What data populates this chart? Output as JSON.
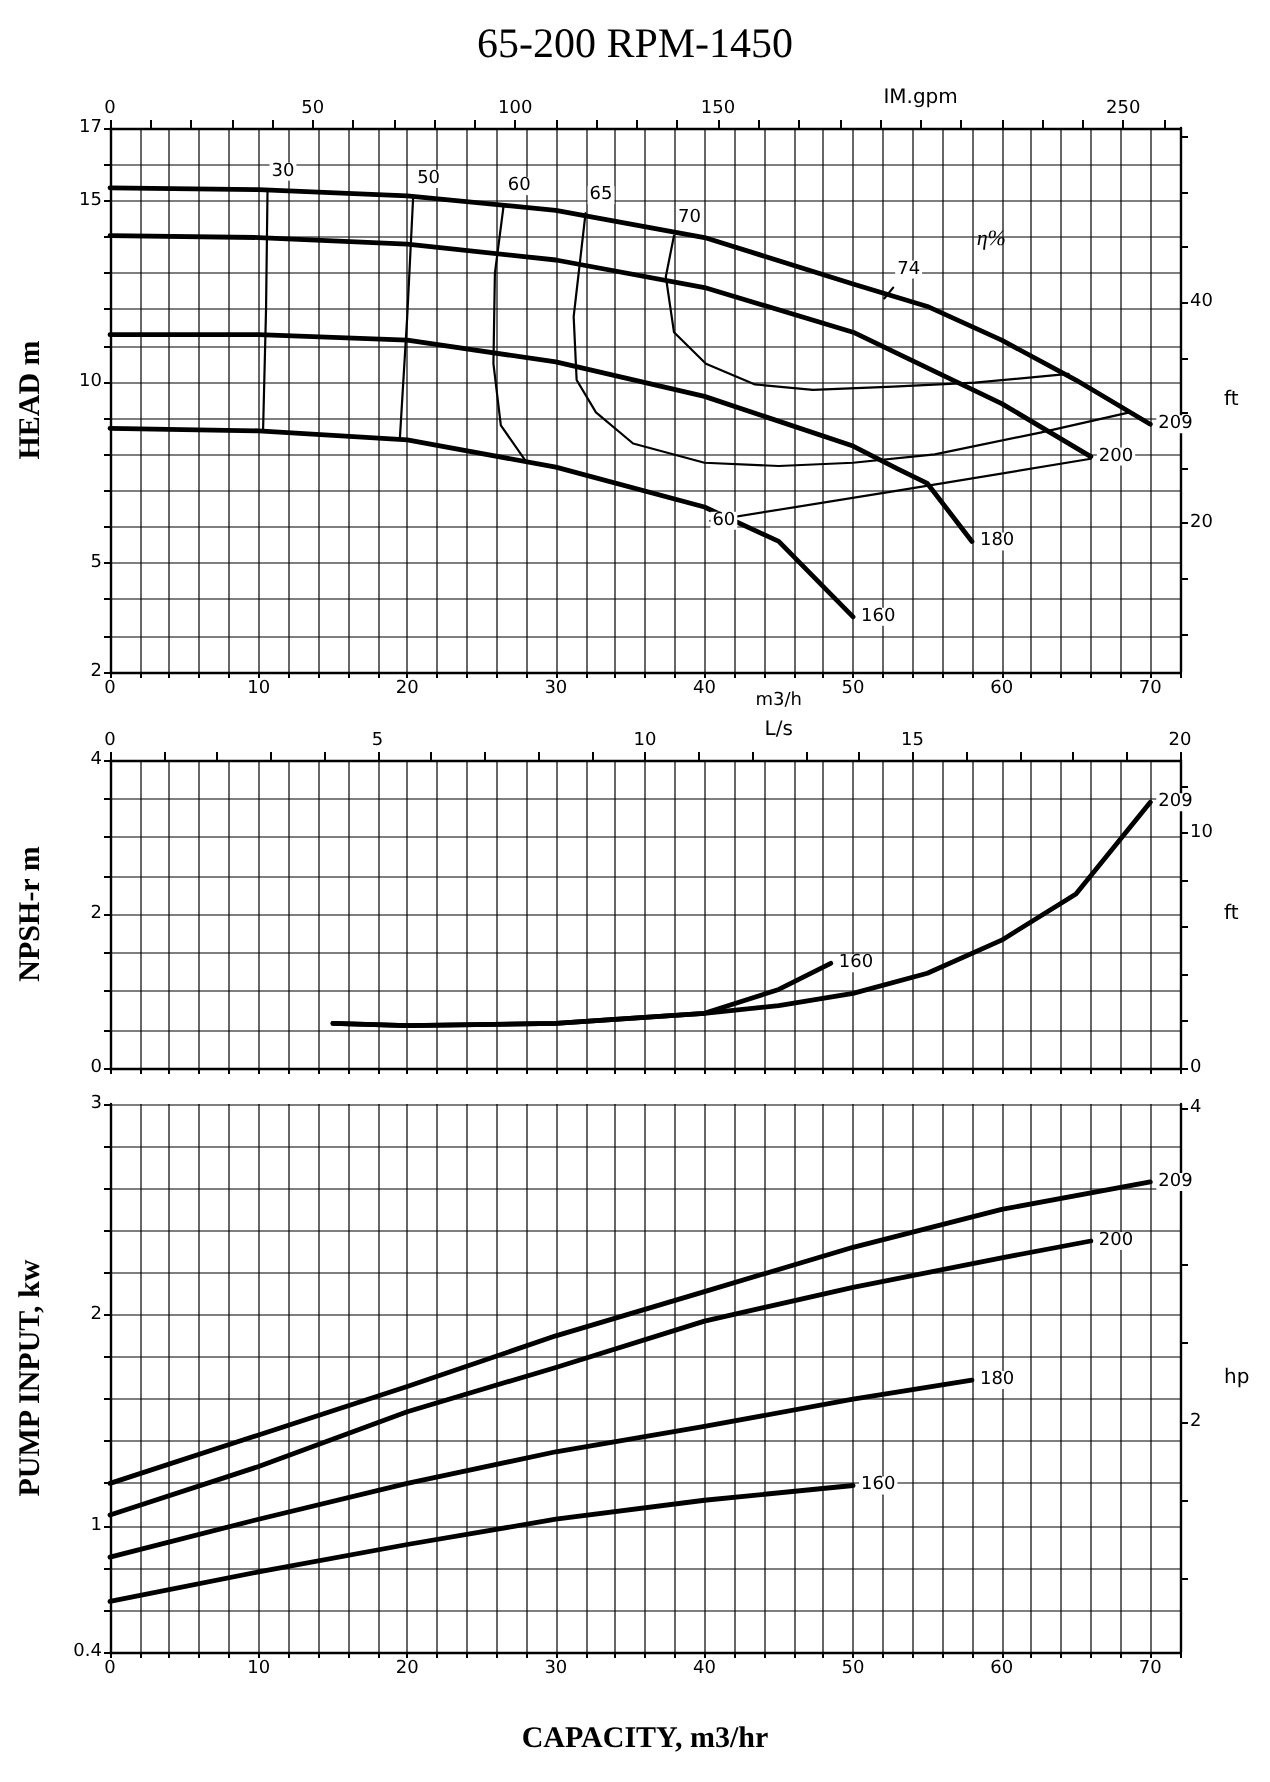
{
  "chart_data": [
    {
      "type": "line",
      "title": "65-200 RPM-1450",
      "ylabel": "HEAD m",
      "xlabel": "m3/h",
      "x2label": "IM.gpm",
      "y2label": "ft",
      "grid": true,
      "legend": false,
      "marker": "none",
      "xlim": [
        0,
        72
      ],
      "xticks": [
        0,
        {
          "value": 2,
          "label": null
        },
        {
          "value": 4,
          "label": null
        },
        {
          "value": 6,
          "label": null
        },
        {
          "value": 8,
          "label": null
        },
        10,
        {
          "value": 12,
          "label": null
        },
        {
          "value": 14,
          "label": null
        },
        {
          "value": 16,
          "label": null
        },
        {
          "value": 18,
          "label": null
        },
        20,
        {
          "value": 22,
          "label": null
        },
        {
          "value": 24,
          "label": null
        },
        {
          "value": 26,
          "label": null
        },
        {
          "value": 28,
          "label": null
        },
        30,
        {
          "value": 32,
          "label": null
        },
        {
          "value": 34,
          "label": null
        },
        {
          "value": 36,
          "label": null
        },
        {
          "value": 38,
          "label": null
        },
        40,
        {
          "value": 42,
          "label": null
        },
        {
          "value": 44,
          "label": null
        },
        {
          "value": 46,
          "label": null
        },
        {
          "value": 48,
          "label": null
        },
        50,
        {
          "value": 52,
          "label": null
        },
        {
          "value": 54,
          "label": null
        },
        {
          "value": 56,
          "label": null
        },
        {
          "value": 58,
          "label": null
        },
        60,
        {
          "value": 62,
          "label": null
        },
        {
          "value": 64,
          "label": null
        },
        {
          "value": 66,
          "label": null
        },
        {
          "value": 68,
          "label": null
        },
        70,
        {
          "value": 72,
          "label": null
        }
      ],
      "ylim": [
        2,
        17
      ],
      "yticks": [
        2,
        {
          "value": 3,
          "label": null
        },
        {
          "value": 4,
          "label": null
        },
        5,
        {
          "value": 6,
          "label": null
        },
        {
          "value": 7,
          "label": null
        },
        {
          "value": 8,
          "label": null
        },
        {
          "value": 9,
          "label": null
        },
        10,
        {
          "value": 11,
          "label": null
        },
        {
          "value": 12,
          "label": null
        },
        {
          "value": 13,
          "label": null
        },
        {
          "value": 14,
          "label": null
        },
        15,
        {
          "value": 16,
          "label": null
        },
        17
      ],
      "x2lim": [
        0,
        264
      ],
      "x2ticks": [
        0,
        {
          "value": 10,
          "label": null
        },
        {
          "value": 20,
          "label": null
        },
        {
          "value": 30,
          "label": null
        },
        {
          "value": 40,
          "label": null
        },
        50,
        {
          "value": 60,
          "label": null
        },
        {
          "value": 70,
          "label": null
        },
        {
          "value": 80,
          "label": null
        },
        {
          "value": 90,
          "label": null
        },
        100,
        {
          "value": 110,
          "label": null
        },
        {
          "value": 120,
          "label": null
        },
        {
          "value": 130,
          "label": null
        },
        {
          "value": 140,
          "label": null
        },
        150,
        {
          "value": 160,
          "label": null
        },
        {
          "value": 170,
          "label": null
        },
        {
          "value": 180,
          "label": null
        },
        {
          "value": 190,
          "label": null
        },
        {
          "value": 200,
          "label": null
        },
        {
          "value": 210,
          "label": null
        },
        {
          "value": 220,
          "label": null
        },
        {
          "value": 230,
          "label": null
        },
        {
          "value": 240,
          "label": null
        },
        250,
        {
          "value": 260,
          "label": null
        }
      ],
      "y2lim": [
        6.56,
        55.77
      ],
      "y2ticks": [
        {
          "value": 10,
          "label": null
        },
        {
          "value": 15,
          "label": null
        },
        20,
        {
          "value": 25,
          "label": null
        },
        {
          "value": 30,
          "label": null
        },
        {
          "value": 35,
          "label": null
        },
        40,
        {
          "value": 45,
          "label": null
        },
        {
          "value": 50,
          "label": null
        },
        {
          "value": 55,
          "label": null
        }
      ],
      "series": [
        {
          "name": "209",
          "color": "#000000",
          "x": [
            0,
            10,
            20,
            30,
            40,
            50,
            55,
            60,
            65,
            70
          ],
          "values": [
            15.35,
            15.3,
            15.13,
            14.73,
            13.98,
            12.7,
            12.08,
            11.15,
            10.05,
            8.83
          ]
        },
        {
          "name": "200",
          "color": "#000000",
          "x": [
            0,
            10,
            20,
            30,
            40,
            50,
            60,
            66
          ],
          "values": [
            14.03,
            13.98,
            13.8,
            13.36,
            12.6,
            11.37,
            9.4,
            7.94
          ]
        },
        {
          "name": "180",
          "color": "#000000",
          "x": [
            0,
            10,
            20,
            30,
            40,
            50,
            53,
            55,
            58
          ],
          "values": [
            11.3,
            11.3,
            11.15,
            10.55,
            9.6,
            8.23,
            7.6,
            7.2,
            5.6
          ]
        },
        {
          "name": "160",
          "color": "#000000",
          "x": [
            0,
            10,
            20,
            30,
            40,
            45,
            50
          ],
          "values": [
            8.72,
            8.65,
            8.4,
            7.65,
            6.55,
            5.6,
            3.52
          ]
        },
        {
          "name": "30",
          "color": "#000000",
          "x": [
            10.3,
            10.5,
            10.6
          ],
          "values": [
            8.65,
            12,
            15.3
          ]
        },
        {
          "name": "50",
          "color": "#000000",
          "x": [
            19.5,
            20,
            20.4
          ],
          "values": [
            8.4,
            11.8,
            15.1
          ]
        },
        {
          "name": "60",
          "color": "#000000",
          "x": [
            28,
            26.3,
            25.8,
            25.9,
            26.5
          ],
          "values": [
            7.8,
            8.8,
            10.5,
            13,
            14.9
          ]
        },
        {
          "name": "65",
          "color": "#000000",
          "x": [
            68.6,
            62.6,
            55.5,
            50,
            45,
            40,
            35.2,
            32.7,
            31.4,
            31.2,
            32
          ],
          "values": [
            9.16,
            8.6,
            8,
            7.77,
            7.68,
            7.77,
            8.3,
            9.16,
            10.05,
            11.8,
            14.65
          ]
        },
        {
          "name": "70",
          "color": "#000000",
          "x": [
            64.5,
            58.2,
            52.7,
            47.3,
            43.4,
            40.1,
            37.95,
            37.4,
            37.95
          ],
          "values": [
            10.22,
            9.98,
            9.87,
            9.78,
            9.93,
            10.5,
            11.37,
            12.9,
            14.03
          ]
        },
        {
          "name": "60",
          "color": "#000000",
          "x": [
            66,
            53,
            40.4
          ],
          "values": [
            7.88,
            7,
            6.17
          ]
        },
        {
          "name": "74",
          "color": "#000000",
          "x": [
            52.1,
            52.7
          ],
          "values": [
            12.3,
            12.6
          ]
        }
      ],
      "annotations": [
        "η%"
      ]
    },
    {
      "type": "line",
      "ylabel": "NPSH-r m",
      "x2label": "L/s",
      "y2label": "ft",
      "grid": true,
      "legend": false,
      "marker": "none",
      "tick_labels": "y",
      "xlim": [
        0,
        72
      ],
      "xticks": [
        0,
        {
          "value": 2,
          "label": null
        },
        {
          "value": 4,
          "label": null
        },
        {
          "value": 6,
          "label": null
        },
        {
          "value": 8,
          "label": null
        },
        10,
        {
          "value": 12,
          "label": null
        },
        {
          "value": 14,
          "label": null
        },
        {
          "value": 16,
          "label": null
        },
        {
          "value": 18,
          "label": null
        },
        20,
        {
          "value": 22,
          "label": null
        },
        {
          "value": 24,
          "label": null
        },
        {
          "value": 26,
          "label": null
        },
        {
          "value": 28,
          "label": null
        },
        30,
        {
          "value": 32,
          "label": null
        },
        {
          "value": 34,
          "label": null
        },
        {
          "value": 36,
          "label": null
        },
        {
          "value": 38,
          "label": null
        },
        40,
        {
          "value": 42,
          "label": null
        },
        {
          "value": 44,
          "label": null
        },
        {
          "value": 46,
          "label": null
        },
        {
          "value": 48,
          "label": null
        },
        50,
        {
          "value": 52,
          "label": null
        },
        {
          "value": 54,
          "label": null
        },
        {
          "value": 56,
          "label": null
        },
        {
          "value": 58,
          "label": null
        },
        60,
        {
          "value": 62,
          "label": null
        },
        {
          "value": 64,
          "label": null
        },
        {
          "value": 66,
          "label": null
        },
        {
          "value": 68,
          "label": null
        },
        70,
        {
          "value": 72,
          "label": null
        }
      ],
      "ylim": [
        0,
        4
      ],
      "yticks": [
        0,
        {
          "value": 0.5,
          "label": null
        },
        {
          "value": 1,
          "label": null
        },
        {
          "value": 1.5,
          "label": null
        },
        2,
        {
          "value": 2.5,
          "label": null
        },
        {
          "value": 3,
          "label": null
        },
        {
          "value": 3.5,
          "label": null
        },
        4
      ],
      "x2lim": [
        0,
        20
      ],
      "x2ticks": [
        0,
        {
          "value": 1,
          "label": null
        },
        {
          "value": 2,
          "label": null
        },
        {
          "value": 3,
          "label": null
        },
        {
          "value": 4,
          "label": null
        },
        5,
        {
          "value": 6,
          "label": null
        },
        {
          "value": 7,
          "label": null
        },
        {
          "value": 8,
          "label": null
        },
        {
          "value": 9,
          "label": null
        },
        10,
        {
          "value": 11,
          "label": null
        },
        {
          "value": 12,
          "label": null
        },
        {
          "value": 13,
          "label": null
        },
        {
          "value": 14,
          "label": null
        },
        15,
        {
          "value": 16,
          "label": null
        },
        {
          "value": 17,
          "label": null
        },
        {
          "value": 18,
          "label": null
        },
        {
          "value": 19,
          "label": null
        },
        20
      ],
      "y2lim": [
        0,
        13.12
      ],
      "y2ticks": [
        0,
        {
          "value": 2,
          "label": null
        },
        {
          "value": 4,
          "label": null
        },
        {
          "value": 6,
          "label": null
        },
        {
          "value": 8,
          "label": null
        },
        10,
        {
          "value": 12,
          "label": null
        }
      ],
      "series": [
        {
          "name": "209",
          "color": "#000000",
          "x": [
            15,
            20,
            30,
            40,
            45,
            50,
            55,
            60,
            65,
            70
          ],
          "values": [
            0.58,
            0.55,
            0.58,
            0.71,
            0.81,
            0.97,
            1.23,
            1.66,
            2.26,
            3.45
          ]
        },
        {
          "name": "160",
          "color": "#000000",
          "x": [
            15,
            20,
            30,
            40,
            45,
            48.5
          ],
          "values": [
            0.58,
            0.55,
            0.58,
            0.71,
            1.02,
            1.36
          ]
        }
      ]
    },
    {
      "type": "line",
      "ylabel": "PUMP INPUT, kw",
      "xlabel": "CAPACITY, m3/hr",
      "y2label": "hp",
      "grid": true,
      "legend": false,
      "marker": "none",
      "xlim": [
        0,
        72
      ],
      "xticks": [
        0,
        {
          "value": 2,
          "label": null
        },
        {
          "value": 4,
          "label": null
        },
        {
          "value": 6,
          "label": null
        },
        {
          "value": 8,
          "label": null
        },
        10,
        {
          "value": 12,
          "label": null
        },
        {
          "value": 14,
          "label": null
        },
        {
          "value": 16,
          "label": null
        },
        {
          "value": 18,
          "label": null
        },
        20,
        {
          "value": 22,
          "label": null
        },
        {
          "value": 24,
          "label": null
        },
        {
          "value": 26,
          "label": null
        },
        {
          "value": 28,
          "label": null
        },
        30,
        {
          "value": 32,
          "label": null
        },
        {
          "value": 34,
          "label": null
        },
        {
          "value": 36,
          "label": null
        },
        {
          "value": 38,
          "label": null
        },
        40,
        {
          "value": 42,
          "label": null
        },
        {
          "value": 44,
          "label": null
        },
        {
          "value": 46,
          "label": null
        },
        {
          "value": 48,
          "label": null
        },
        50,
        {
          "value": 52,
          "label": null
        },
        {
          "value": 54,
          "label": null
        },
        {
          "value": 56,
          "label": null
        },
        {
          "value": 58,
          "label": null
        },
        60,
        {
          "value": 62,
          "label": null
        },
        {
          "value": 64,
          "label": null
        },
        {
          "value": 66,
          "label": null
        },
        {
          "value": 68,
          "label": null
        },
        70,
        {
          "value": 72,
          "label": null
        }
      ],
      "ylim": [
        0.4,
        3
      ],
      "yticks": [
        0.4,
        {
          "value": 0.6,
          "label": null
        },
        {
          "value": 0.8,
          "label": null
        },
        1,
        {
          "value": 1.2,
          "label": null
        },
        {
          "value": 1.4,
          "label": null
        },
        {
          "value": 1.6,
          "label": null
        },
        {
          "value": 1.8,
          "label": null
        },
        2,
        {
          "value": 2.2,
          "label": null
        },
        {
          "value": 2.4,
          "label": null
        },
        {
          "value": 2.6,
          "label": null
        },
        {
          "value": 2.8,
          "label": null
        },
        3
      ],
      "y2lim": [
        0.536,
        4.023
      ],
      "y2ticks": [
        {
          "value": 1,
          "label": null
        },
        {
          "value": 1.5,
          "label": null
        },
        2,
        {
          "value": 2.5,
          "label": null
        },
        {
          "value": 3,
          "label": null
        },
        {
          "value": 3.5,
          "label": null
        },
        4
      ],
      "series": [
        {
          "name": "209",
          "color": "#000000",
          "x": [
            0,
            10,
            20,
            30,
            40,
            50,
            60,
            70
          ],
          "values": [
            1.2,
            1.43,
            1.66,
            1.9,
            2.11,
            2.32,
            2.5,
            2.63
          ]
        },
        {
          "name": "200",
          "color": "#000000",
          "x": [
            0,
            10,
            20,
            30,
            40,
            50,
            60,
            66
          ],
          "values": [
            1.05,
            1.28,
            1.54,
            1.75,
            1.97,
            2.13,
            2.27,
            2.35
          ]
        },
        {
          "name": "180",
          "color": "#000000",
          "x": [
            0,
            10,
            20,
            30,
            40,
            50,
            58
          ],
          "values": [
            0.85,
            1.03,
            1.2,
            1.35,
            1.47,
            1.6,
            1.69
          ]
        },
        {
          "name": "160",
          "color": "#000000",
          "x": [
            0,
            10,
            20,
            30,
            40,
            50
          ],
          "values": [
            0.64,
            0.78,
            0.91,
            1.03,
            1.12,
            1.19
          ]
        }
      ]
    }
  ]
}
